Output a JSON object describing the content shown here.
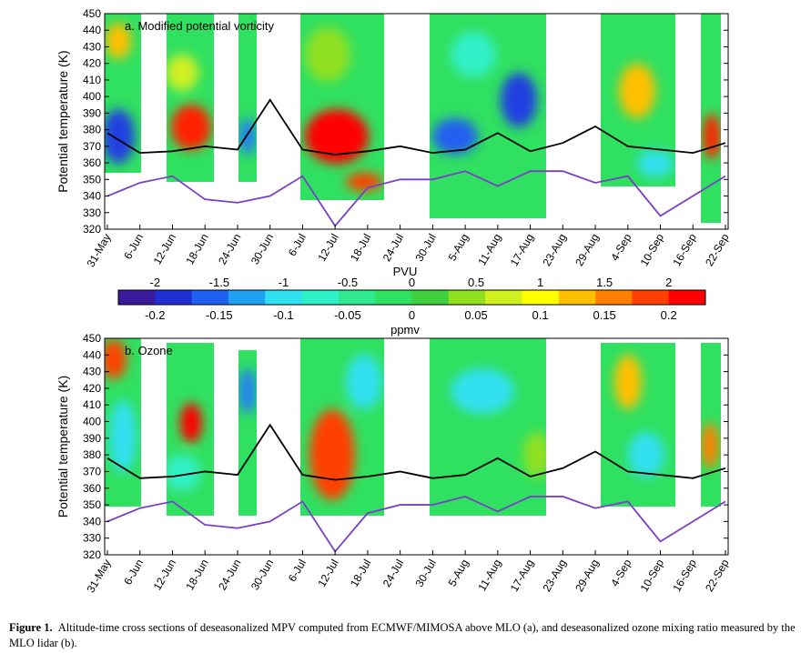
{
  "panels": [
    {
      "title": "a. Modified potential vorticity",
      "ylabel": "Potential temperature (K)",
      "ylim": [
        320,
        450
      ],
      "yticks": [
        320,
        330,
        340,
        350,
        360,
        370,
        380,
        390,
        400,
        410,
        420,
        430,
        440,
        450
      ],
      "categories": [
        "31-May",
        "6-Jun",
        "12-Jun",
        "18-Jun",
        "24-Jun",
        "30-Jun",
        "6-Jul",
        "12-Jul",
        "18-Jul",
        "24-Jul",
        "30-Jul",
        "5-Aug",
        "11-Aug",
        "17-Aug",
        "23-Aug",
        "29-Aug",
        "4-Sep",
        "10-Sep",
        "16-Sep",
        "22-Sep"
      ],
      "series": [
        {
          "color": "#000000",
          "values": [
            378,
            366,
            367,
            370,
            368,
            398,
            368,
            365,
            367,
            370,
            366,
            368,
            378,
            367,
            372,
            382,
            370,
            368,
            366,
            372
          ]
        },
        {
          "color": "#7a3fc8",
          "values": [
            340,
            348,
            352,
            338,
            336,
            340,
            352,
            322,
            345,
            350,
            350,
            355,
            346,
            355,
            355,
            348,
            352,
            328,
            340,
            352
          ]
        }
      ]
    },
    {
      "title": "b. Ozone",
      "ylabel": "Potential temperature (K)",
      "ylim": [
        320,
        450
      ],
      "yticks": [
        320,
        330,
        340,
        350,
        360,
        370,
        380,
        390,
        400,
        410,
        420,
        430,
        440,
        450
      ],
      "categories": [
        "31-May",
        "6-Jun",
        "12-Jun",
        "18-Jun",
        "24-Jun",
        "30-Jun",
        "6-Jul",
        "12-Jul",
        "18-Jul",
        "24-Jul",
        "30-Jul",
        "5-Aug",
        "11-Aug",
        "17-Aug",
        "23-Aug",
        "29-Aug",
        "4-Sep",
        "10-Sep",
        "16-Sep",
        "22-Sep"
      ],
      "series": [
        {
          "color": "#000000",
          "values": [
            378,
            366,
            367,
            370,
            368,
            398,
            368,
            365,
            367,
            370,
            366,
            368,
            378,
            367,
            372,
            382,
            370,
            368,
            366,
            372
          ]
        },
        {
          "color": "#7a3fc8",
          "values": [
            340,
            348,
            352,
            338,
            336,
            340,
            352,
            322,
            345,
            350,
            350,
            355,
            346,
            355,
            355,
            348,
            352,
            328,
            340,
            352
          ]
        }
      ]
    }
  ],
  "colorbar": {
    "top_label": "PVU",
    "top_ticks": [
      -2,
      -1.5,
      -1,
      -0.5,
      0,
      0.5,
      1,
      1.5,
      2
    ],
    "bottom_label": "ppmv",
    "bottom_ticks": [
      -0.2,
      -0.15,
      -0.1,
      -0.05,
      0,
      0.05,
      0.1,
      0.15,
      0.2
    ],
    "colors": [
      "#3a1a9a",
      "#2030d0",
      "#2060f0",
      "#20a0f0",
      "#30e0f0",
      "#30f0c8",
      "#30e890",
      "#30e060",
      "#40d040",
      "#90e020",
      "#d0f020",
      "#ffff00",
      "#ffc000",
      "#ff8000",
      "#ff4000",
      "#ff0000"
    ]
  },
  "caption_label": "Figure 1.",
  "caption": "Altitude-time cross sections of deseasonalized MPV computed from ECMWF/MIMOSA above MLO (a), and deseasonalized ozone mixing ratio measured by the MLO lidar (b)."
}
